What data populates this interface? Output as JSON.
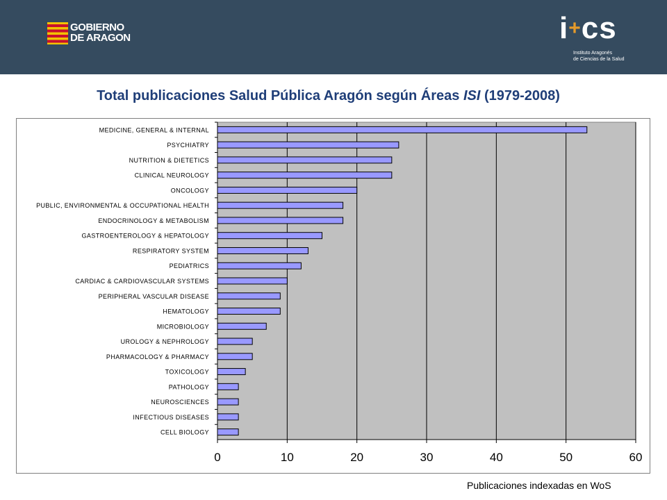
{
  "header": {
    "gov_logo_lines": [
      "GOBIERNO",
      "DE ARAGON"
    ],
    "ics_logo_mark": "i+cs",
    "ics_logo_sub": [
      "Instituto Aragonés",
      "de Ciencias de la Salud"
    ]
  },
  "title": {
    "part1": "Total publicaciones Salud Pública Aragón según Áreas ",
    "part2": "ISI",
    "part3": " (1979-2008)"
  },
  "footer": "Publicaciones indexadas en WoS",
  "chart_data": {
    "type": "bar",
    "orientation": "horizontal",
    "title": "",
    "xlabel": "",
    "ylabel": "",
    "xlim": [
      0,
      60
    ],
    "x_ticks": [
      0,
      10,
      20,
      30,
      40,
      50,
      60
    ],
    "grid": true,
    "bar_color": "#9999ff",
    "plot_background": "#c0c0c0",
    "categories": [
      "MEDICINE, GENERAL & INTERNAL",
      "PSYCHIATRY",
      "NUTRITION & DIETETICS",
      "CLINICAL NEUROLOGY",
      "ONCOLOGY",
      "PUBLIC, ENVIRONMENTAL & OCCUPATIONAL HEALTH",
      "ENDOCRINOLOGY & METABOLISM",
      "GASTROENTEROLOGY & HEPATOLOGY",
      "RESPIRATORY SYSTEM",
      "PEDIATRICS",
      "CARDIAC & CARDIOVASCULAR SYSTEMS",
      "PERIPHERAL VASCULAR DISEASE",
      "HEMATOLOGY",
      "MICROBIOLOGY",
      "UROLOGY & NEPHROLOGY",
      "PHARMACOLOGY & PHARMACY",
      "TOXICOLOGY",
      "PATHOLOGY",
      "NEUROSCIENCES",
      "INFECTIOUS DISEASES",
      "CELL BIOLOGY"
    ],
    "values": [
      53,
      26,
      25,
      25,
      20,
      18,
      18,
      15,
      13,
      12,
      10,
      9,
      9,
      7,
      5,
      5,
      4,
      3,
      3,
      3,
      3
    ]
  }
}
